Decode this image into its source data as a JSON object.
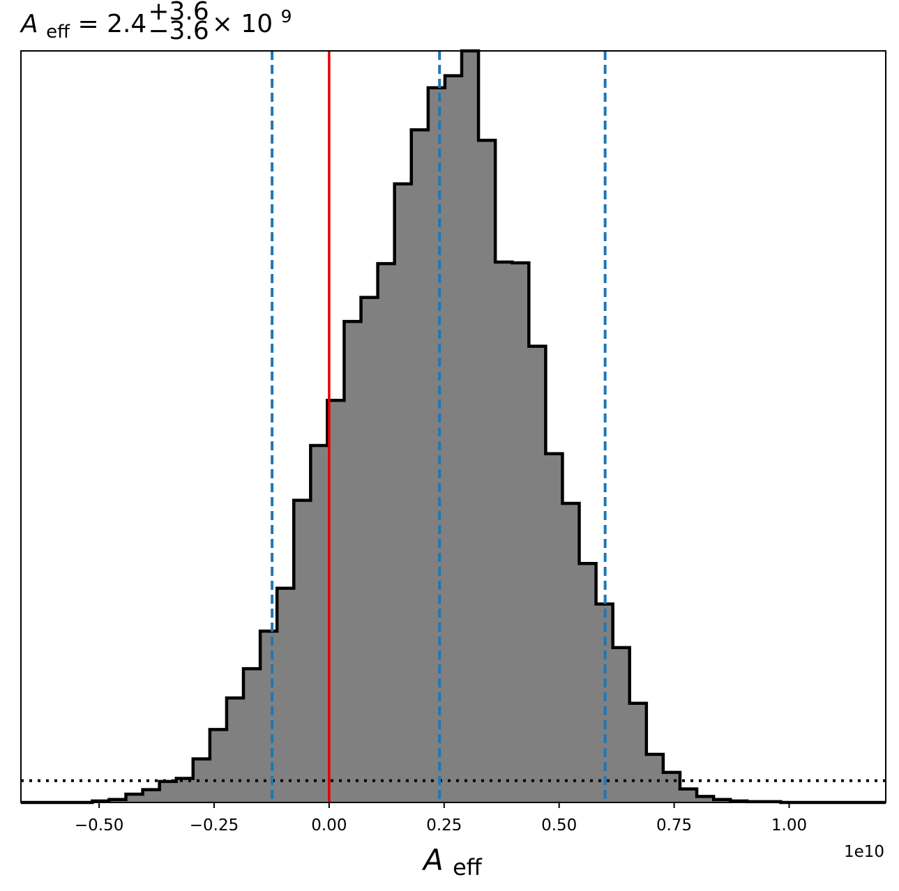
{
  "chart_data": {
    "type": "bar",
    "title": {
      "base": "A",
      "base_sub": "eff",
      "equals": " = 2.4",
      "sup": "+3.6",
      "sub": "−3.6",
      "times": " × 10",
      "exp": "9"
    },
    "xlabel": {
      "base": "A",
      "sub": "eff"
    },
    "ylabel": "",
    "x_offset_label": "1e10",
    "xlim": [
      -0.67,
      1.21
    ],
    "ylim": [
      0,
      1
    ],
    "x_ticks": [
      -0.5,
      -0.25,
      0.0,
      0.25,
      0.5,
      0.75,
      1.0
    ],
    "x_tick_labels": [
      "−0.50",
      "−0.25",
      "0.00",
      "0.25",
      "0.50",
      "0.75",
      "1.00"
    ],
    "grid": false,
    "colors": {
      "fill": "#808080",
      "outline": "#000000",
      "quantile": "#1f77b4",
      "truth": "#e50000"
    },
    "bin_edges": [
      -0.5148,
      -0.4783,
      -0.4418,
      -0.4053,
      -0.3688,
      -0.3323,
      -0.2958,
      -0.2593,
      -0.2228,
      -0.1863,
      -0.1498,
      -0.1133,
      -0.0768,
      -0.0403,
      -0.0038,
      0.0327,
      0.0692,
      0.1057,
      0.1422,
      0.1787,
      0.2152,
      0.2517,
      0.2882,
      0.3247,
      0.3612,
      0.3977,
      0.4342,
      0.4707,
      0.5072,
      0.5437,
      0.5802,
      0.6167,
      0.6532,
      0.6897,
      0.7262,
      0.7627,
      0.7992,
      0.8357,
      0.8722,
      0.9087,
      0.9452,
      0.9817,
      1.0182,
      1.0547,
      1.0912,
      1.1277
    ],
    "values": [
      0.002,
      0.004,
      0.011,
      0.017,
      0.028,
      0.032,
      0.058,
      0.097,
      0.139,
      0.178,
      0.228,
      0.285,
      0.402,
      0.475,
      0.535,
      0.64,
      0.672,
      0.717,
      0.823,
      0.895,
      0.951,
      0.967,
      1.0,
      0.881,
      0.719,
      0.718,
      0.607,
      0.464,
      0.398,
      0.318,
      0.264,
      0.206,
      0.132,
      0.064,
      0.04,
      0.018,
      0.008,
      0.004,
      0.002,
      0.001,
      0.001,
      0.0,
      0.0,
      0.0,
      0.0
    ],
    "quantile_lines": [
      -0.124,
      0.24,
      0.6
    ],
    "truth_line": 0.0,
    "prior_level": 0.029
  }
}
